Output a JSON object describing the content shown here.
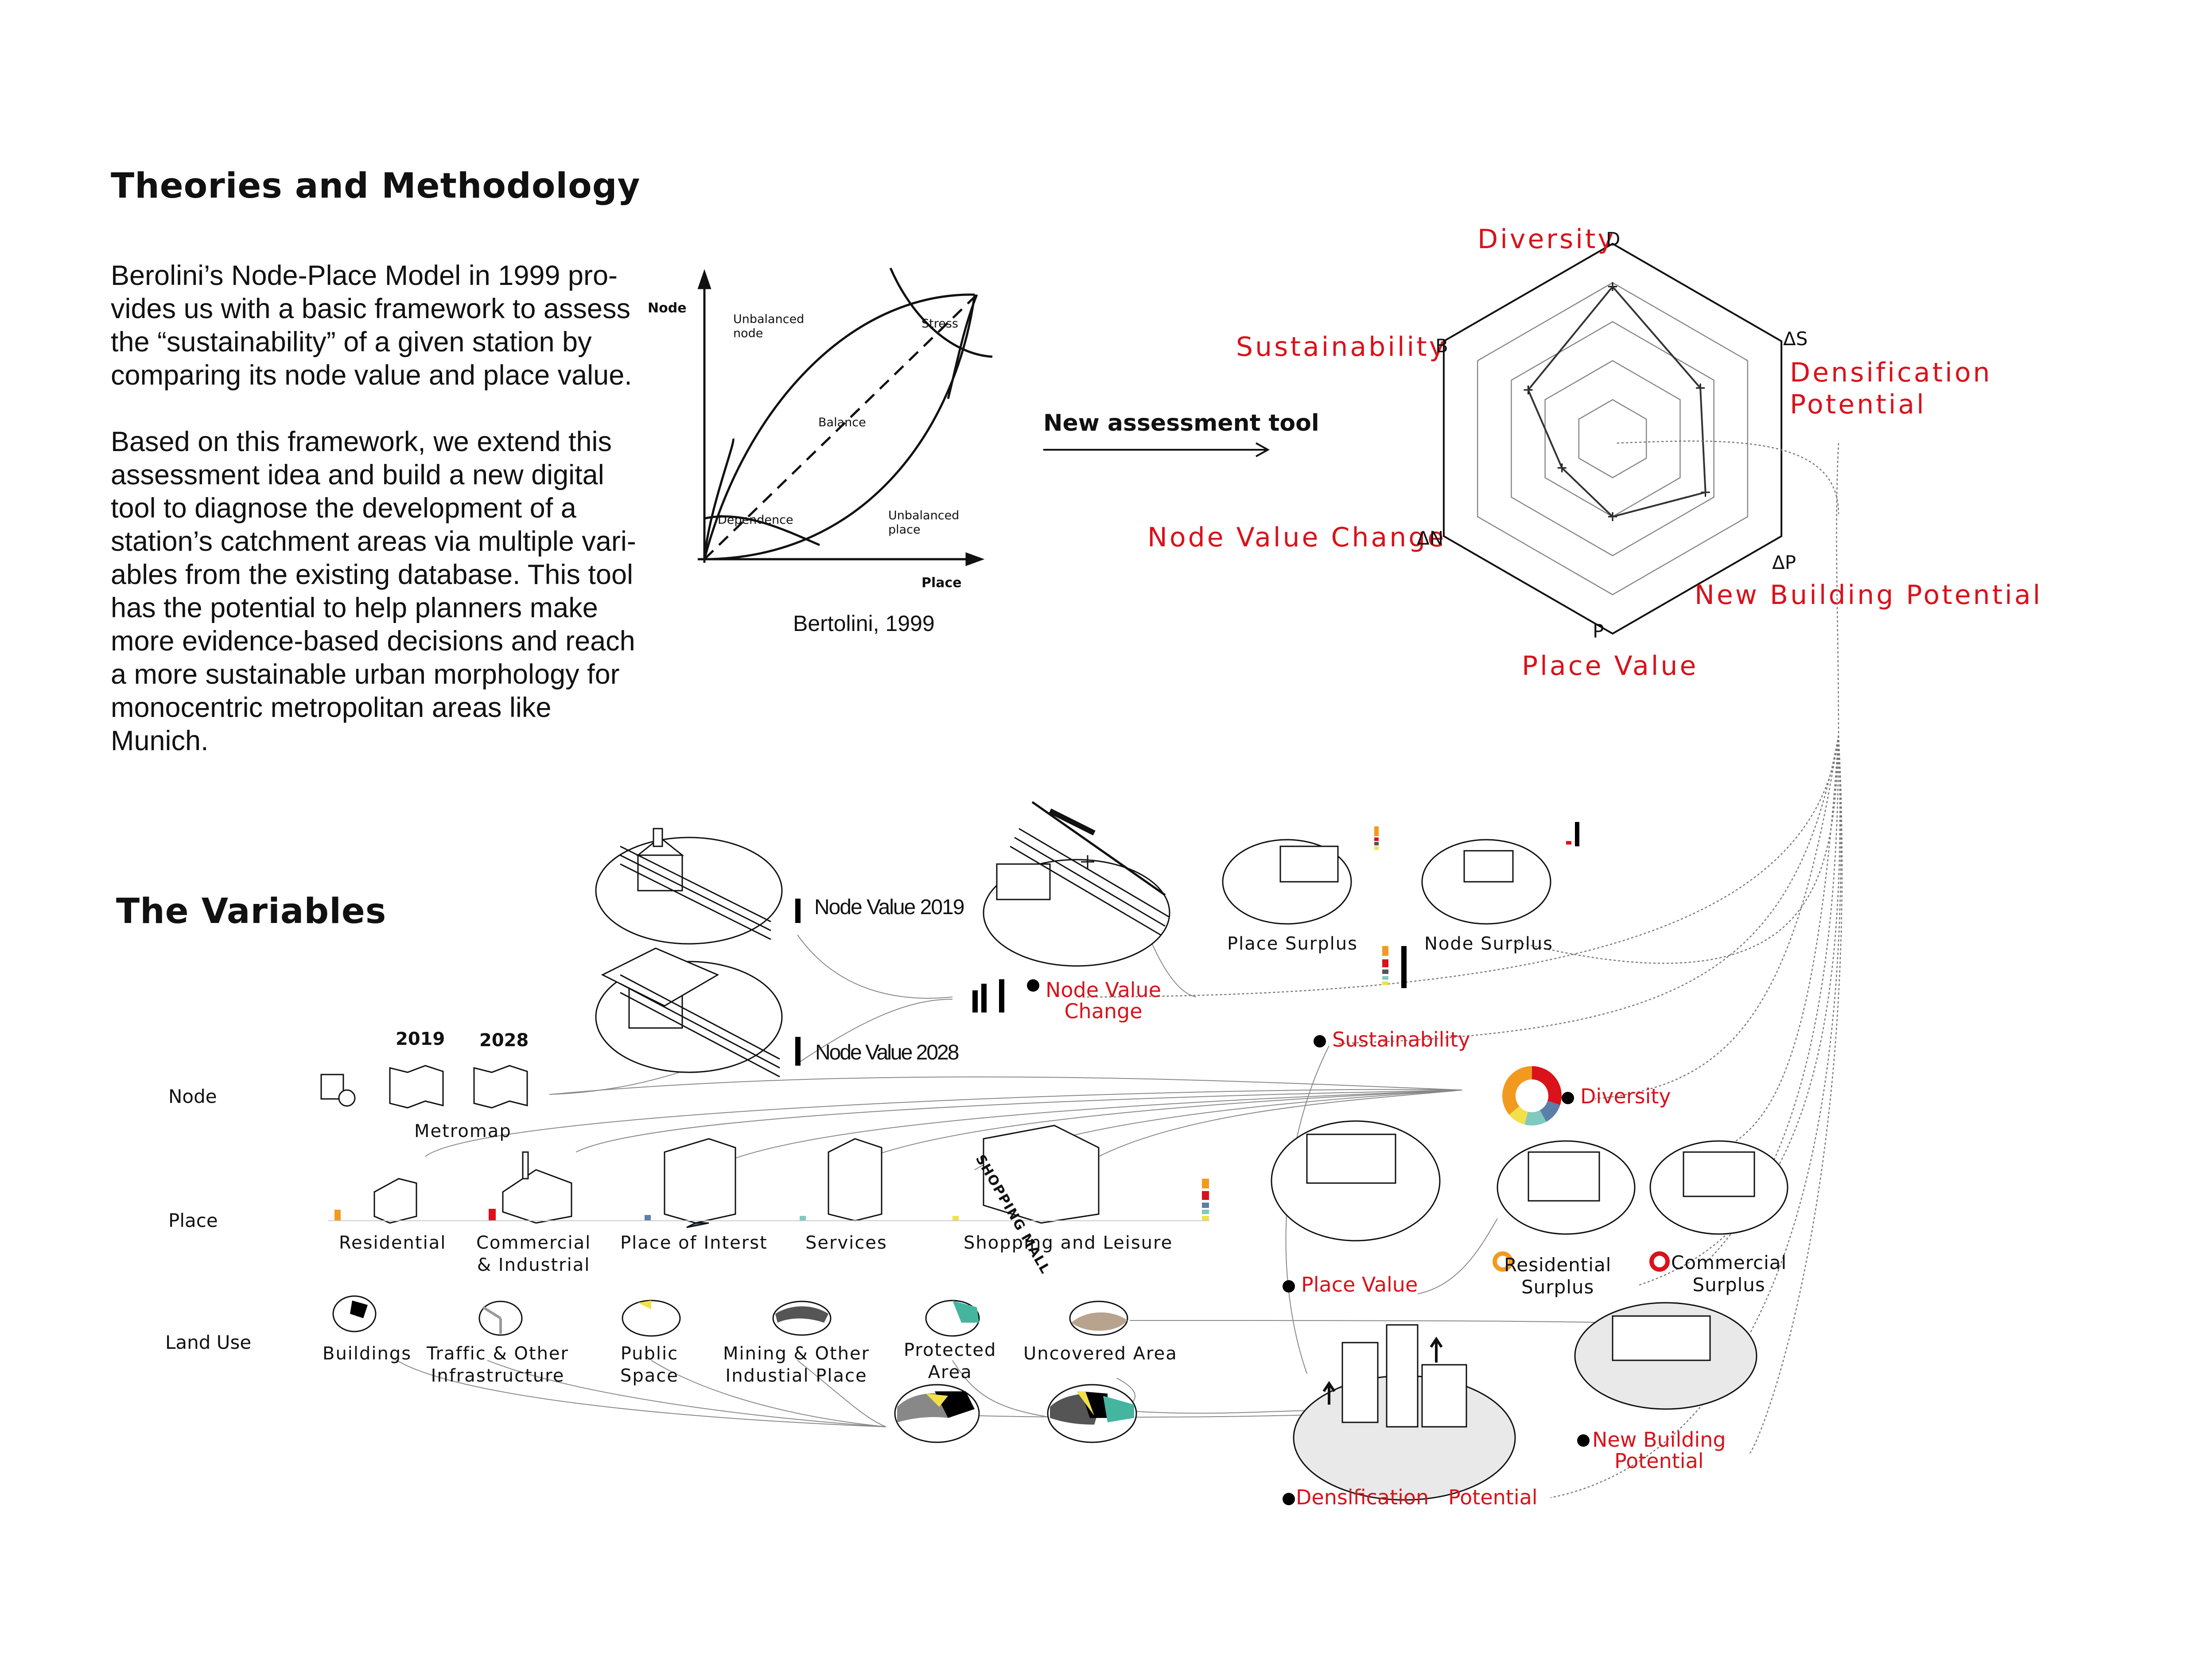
{
  "theories": {
    "title": "Theories and Methodology",
    "para1": "Berolini’s Node-Place Model in 1999 pro-\nvides us with a basic framework to assess\nthe “sustainability” of a given station by\ncomparing its node value and place value.",
    "para2": "Based on this framework, we extend this\nassessment idea and build a new digital\ntool to diagnose the development of a\nstation’s catchment areas via multiple vari-\nables from the existing database. This tool\nhas the potential to help planners make\nmore evidence-based decisions and reach\na more sustainable urban morphology for\nmonocentric metropolitan areas like\nMunich."
  },
  "bertolini": {
    "y_axis": "Node",
    "x_axis": "Place",
    "zones": {
      "unbalanced_node": "Unbalanced\nnode",
      "stress": "Stress",
      "balance": "Balance",
      "dependence": "Dependence",
      "unbalanced_place": "Unbalanced\nplace"
    },
    "caption": "Bertolini, 1999"
  },
  "arrow_label": "New assessment tool",
  "radar": {
    "axes": [
      {
        "name": "Diversity",
        "code": "D"
      },
      {
        "name": "Densification\nPotential",
        "code": "ΔS"
      },
      {
        "name": "New Building Potential",
        "code": "ΔP"
      },
      {
        "name": "Place Value",
        "code": "P"
      },
      {
        "name": "Node Value Change",
        "code": "ΔN"
      },
      {
        "name": "Sustainability",
        "code": "B"
      }
    ],
    "rings": 5,
    "profile": [
      0.78,
      0.52,
      0.55,
      0.4,
      0.3,
      0.5
    ],
    "accent": "#d9121b"
  },
  "variables": {
    "title": "The Variables",
    "row_labels": {
      "node": "Node",
      "place": "Place",
      "land_use": "Land Use"
    },
    "years": [
      "2019",
      "2028"
    ],
    "metromap": "Metromap",
    "node_2019": "Node Value 2019",
    "node_2028": "Node Value 2028",
    "node_change": "Node Value\nChange",
    "place_surplus": "Place Surplus",
    "node_surplus": "Node Surplus",
    "sustainability": "Sustainability",
    "diversity": "Diversity",
    "place_value": "Place Value",
    "residential_surplus": "Residential\nSurplus",
    "commercial_surplus": "Commercial\nSurplus",
    "new_building": "New    Building\nPotential",
    "densification": "Densification   Potential",
    "place_items": [
      {
        "label": "Residential",
        "color": "#f29a1f"
      },
      {
        "label": "Commercial\n& Industrial",
        "color": "#d9121b"
      },
      {
        "label": "Place of Interst",
        "color": "#5b7fa8"
      },
      {
        "label": "Services",
        "color": "#7fc9c0"
      },
      {
        "label": "Shopping and Leisure",
        "color": "#f2e04a"
      }
    ],
    "land_use_items": [
      {
        "label": "Buildings",
        "color": "#000000"
      },
      {
        "label": "Traffic & Other\nInfrastructure",
        "color": "#9a9a9a"
      },
      {
        "label": "Public\nSpace",
        "color": "#f2e04a"
      },
      {
        "label": "Mining & Other\nIndustial Place",
        "color": "#555555"
      },
      {
        "label": "Protected\nArea",
        "color": "#45b5a0"
      },
      {
        "label": "Uncovered Area",
        "color": "#b8a38e"
      }
    ],
    "shop_sign": "SHOPPING MALL",
    "diversity_donut": [
      {
        "color": "#d9121b",
        "value": 0.3
      },
      {
        "color": "#5b7fa8",
        "value": 0.12
      },
      {
        "color": "#7fc9c0",
        "value": 0.12
      },
      {
        "color": "#f2e04a",
        "value": 0.1
      },
      {
        "color": "#f29a1f",
        "value": 0.36
      }
    ]
  }
}
